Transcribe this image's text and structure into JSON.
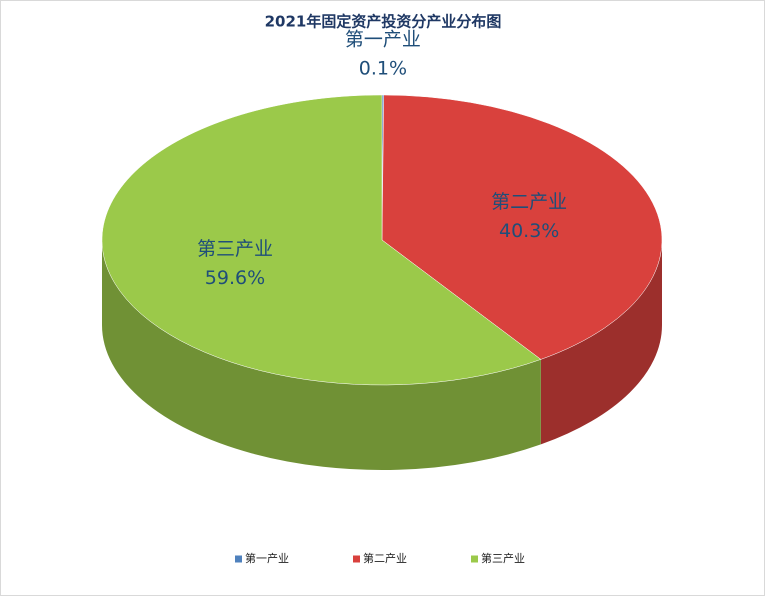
{
  "chart_data": {
    "type": "pie3d",
    "title": "2021年固定资产投资分产业分布图",
    "categories": [
      "第一产业",
      "第二产业",
      "第三产业"
    ],
    "values": [
      0.1,
      40.3,
      59.6
    ],
    "value_labels": [
      "0.1%",
      "40.3%",
      "59.6%"
    ],
    "colors": [
      "#4f81bd",
      "#d9413d",
      "#9bc94a"
    ],
    "legend": "bottom"
  }
}
